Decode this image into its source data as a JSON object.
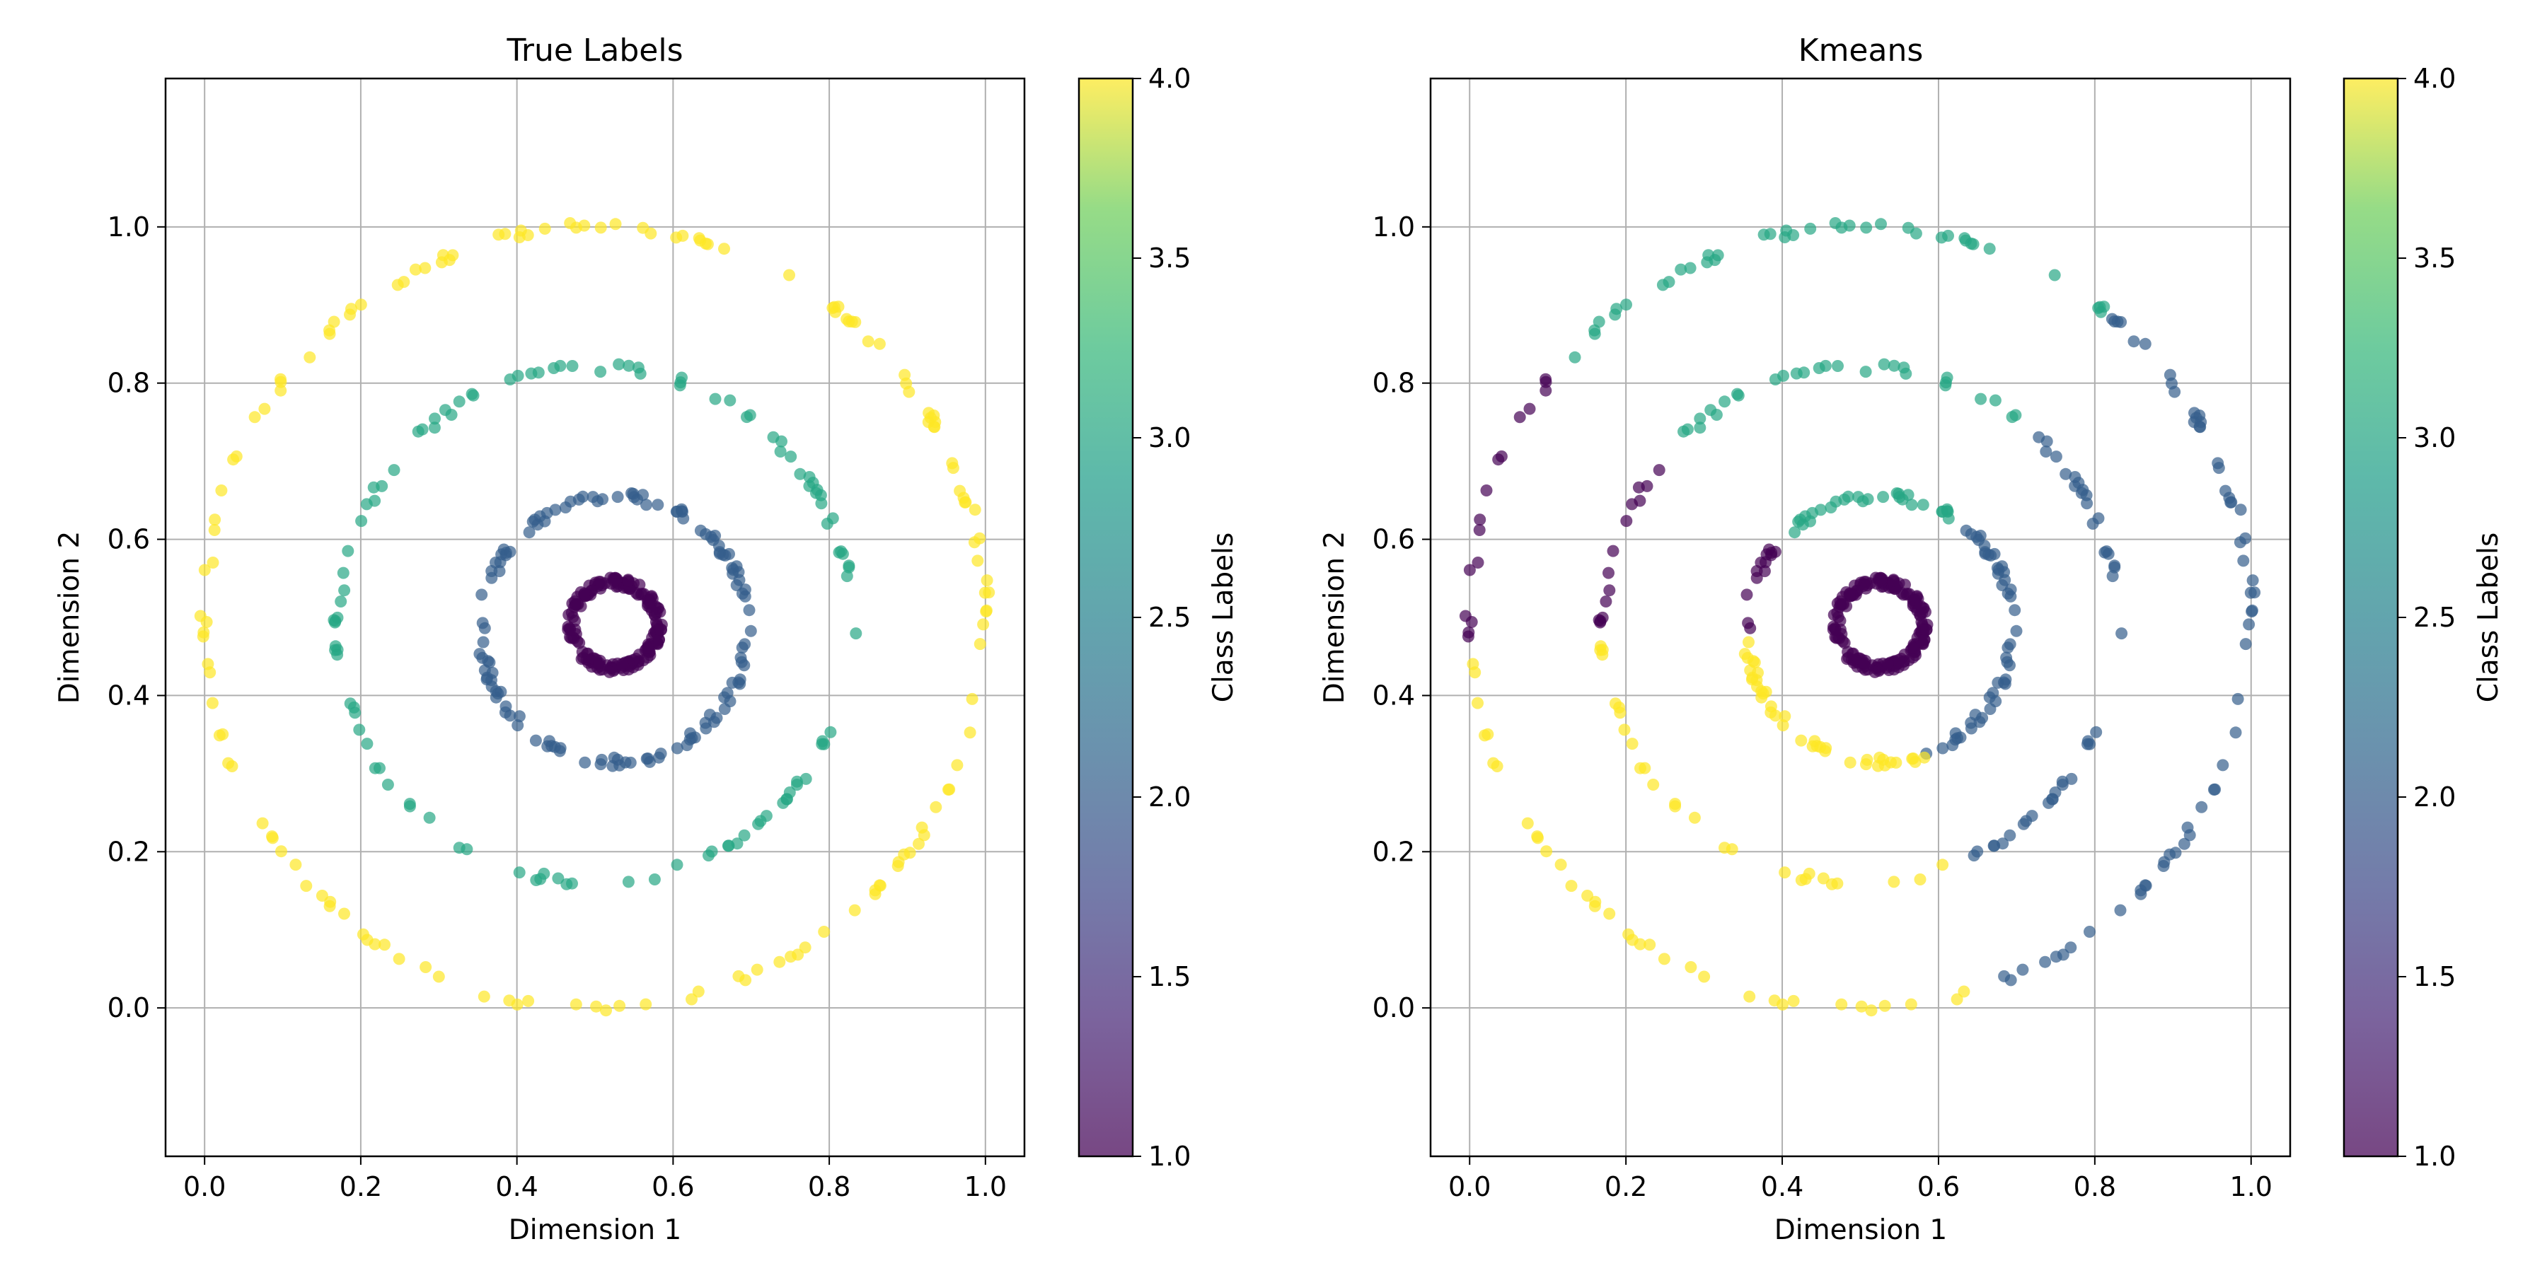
{
  "chart_data": [
    {
      "type": "scatter",
      "title": "True Labels",
      "xlabel": "Dimension 1",
      "ylabel": "Dimension 2",
      "xlim": [
        -0.05,
        1.05
      ],
      "ylim": [
        -0.19,
        1.19
      ],
      "xticks": [
        "0.0",
        "0.2",
        "0.4",
        "0.6",
        "0.8",
        "1.0"
      ],
      "yticks": [
        "0.0",
        "0.2",
        "0.4",
        "0.6",
        "0.8",
        "1.0"
      ],
      "grid": true,
      "colorbar": {
        "label": "Class Labels",
        "range": [
          1.0,
          4.0
        ],
        "ticks": [
          "1.0",
          "1.5",
          "2.0",
          "2.5",
          "3.0",
          "3.5",
          "4.0"
        ],
        "colormap": "viridis"
      },
      "marker_alpha": 0.7,
      "rings": [
        {
          "label": 1,
          "center": [
            0.525,
            0.49
          ],
          "radius": 0.055,
          "n": 180
        },
        {
          "label": 2,
          "center": [
            0.525,
            0.485
          ],
          "radius": 0.17,
          "n": 130
        },
        {
          "label": 3,
          "center": [
            0.5,
            0.49
          ],
          "radius": 0.33,
          "n": 110
        },
        {
          "label": 4,
          "center": [
            0.5,
            0.5
          ],
          "radius": 0.5,
          "n": 150
        }
      ]
    },
    {
      "type": "scatter",
      "title": "Kmeans",
      "xlabel": "Dimension 1",
      "ylabel": "Dimension 2",
      "xlim": [
        -0.05,
        1.05
      ],
      "ylim": [
        -0.19,
        1.19
      ],
      "xticks": [
        "0.0",
        "0.2",
        "0.4",
        "0.6",
        "0.8",
        "1.0"
      ],
      "yticks": [
        "0.0",
        "0.2",
        "0.4",
        "0.6",
        "0.8",
        "1.0"
      ],
      "grid": true,
      "colorbar": {
        "label": "Class Labels",
        "range": [
          1.0,
          4.0
        ],
        "ticks": [
          "1.0",
          "1.5",
          "2.0",
          "2.5",
          "3.0",
          "3.5",
          "4.0"
        ],
        "colormap": "viridis"
      },
      "marker_alpha": 0.7,
      "cluster_assignment_by_angle_deg": [
        {
          "label": 3,
          "from": 50,
          "to": 140
        },
        {
          "label": 1,
          "from": 140,
          "to": 183
        },
        {
          "label": 4,
          "from": 183,
          "to": 290
        },
        {
          "label": 2,
          "from": 290,
          "to": 410
        }
      ],
      "inner_ring_label": 1,
      "rings": [
        {
          "center": [
            0.525,
            0.49
          ],
          "radius": 0.055,
          "n": 180
        },
        {
          "center": [
            0.525,
            0.485
          ],
          "radius": 0.17,
          "n": 130
        },
        {
          "center": [
            0.5,
            0.49
          ],
          "radius": 0.33,
          "n": 110
        },
        {
          "center": [
            0.5,
            0.5
          ],
          "radius": 0.5,
          "n": 150
        }
      ]
    }
  ]
}
